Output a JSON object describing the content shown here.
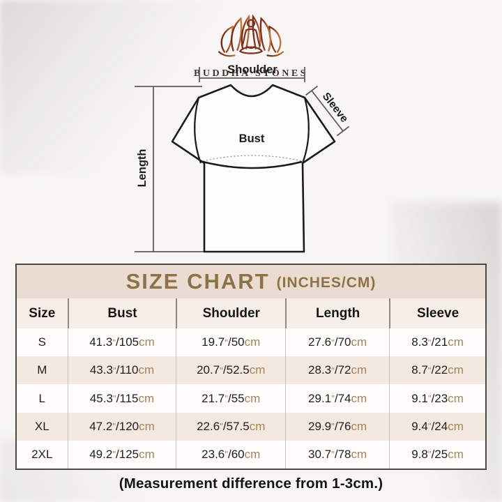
{
  "brand": {
    "name": "BUDDHA STONES",
    "logo": "lotus-meditation-icon"
  },
  "diagram": {
    "labels": {
      "shoulder": "Shoulder",
      "sleeve": "Sleeve",
      "bust": "Bust",
      "length": "Length"
    }
  },
  "size_chart": {
    "title": "SIZE CHART",
    "title_suffix": "(INCHES/CM)",
    "columns": [
      "Size",
      "Bust",
      "Shoulder",
      "Length",
      "Sleeve"
    ],
    "unit_inch": "\"",
    "unit_cm": "cm",
    "separator": "/",
    "rows": [
      {
        "size": "S",
        "bust": [
          "41.3",
          "105"
        ],
        "shoulder": [
          "19.7",
          "50"
        ],
        "length": [
          "27.6",
          "70"
        ],
        "sleeve": [
          "8.3",
          "21"
        ]
      },
      {
        "size": "M",
        "bust": [
          "43.3",
          "110"
        ],
        "shoulder": [
          "20.7",
          "52.5"
        ],
        "length": [
          "28.3",
          "72"
        ],
        "sleeve": [
          "8.7",
          "22"
        ]
      },
      {
        "size": "L",
        "bust": [
          "45.3",
          "115"
        ],
        "shoulder": [
          "21.7",
          "55"
        ],
        "length": [
          "29.1",
          "74"
        ],
        "sleeve": [
          "9.1",
          "23"
        ]
      },
      {
        "size": "XL",
        "bust": [
          "47.2",
          "120"
        ],
        "shoulder": [
          "22.6",
          "57.5"
        ],
        "length": [
          "29.9",
          "76"
        ],
        "sleeve": [
          "9.4",
          "24"
        ]
      },
      {
        "size": "2XL",
        "bust": [
          "49.2",
          "125"
        ],
        "shoulder": [
          "23.6",
          "60"
        ],
        "length": [
          "30.7",
          "78"
        ],
        "sleeve": [
          "9.8",
          "25"
        ]
      }
    ]
  },
  "footer": {
    "note": "(Measurement difference from 1-3cm.)"
  },
  "colors": {
    "title_bg": "#eadcd0",
    "title_text": "#8c7246",
    "header_bg": "#f6efe8",
    "row_alt_bg": "#f4e9e0",
    "unit_text": "#a3845a",
    "table_border": "#4c4844",
    "logo_gradient_start": "#6f2b1c",
    "logo_gradient_end": "#c4763f"
  },
  "chart_data": {
    "type": "table",
    "title": "SIZE CHART (INCHES/CM)",
    "columns": [
      "Size",
      "Bust",
      "Shoulder",
      "Length",
      "Sleeve"
    ],
    "rows": [
      [
        "S",
        "41.3\"/105cm",
        "19.7\"/50cm",
        "27.6\"/70cm",
        "8.3\"/21cm"
      ],
      [
        "M",
        "43.3\"/110cm",
        "20.7\"/52.5cm",
        "28.3\"/72cm",
        "8.7\"/22cm"
      ],
      [
        "L",
        "45.3\"/115cm",
        "21.7\"/55cm",
        "29.1\"/74cm",
        "9.1\"/23cm"
      ],
      [
        "XL",
        "47.2\"/120cm",
        "22.6\"/57.5cm",
        "29.9\"/76cm",
        "9.4\"/24cm"
      ],
      [
        "2XL",
        "49.2\"/125cm",
        "23.6\"/60cm",
        "30.7\"/78cm",
        "9.8\"/25cm"
      ]
    ],
    "note": "(Measurement difference from 1-3cm.)"
  }
}
